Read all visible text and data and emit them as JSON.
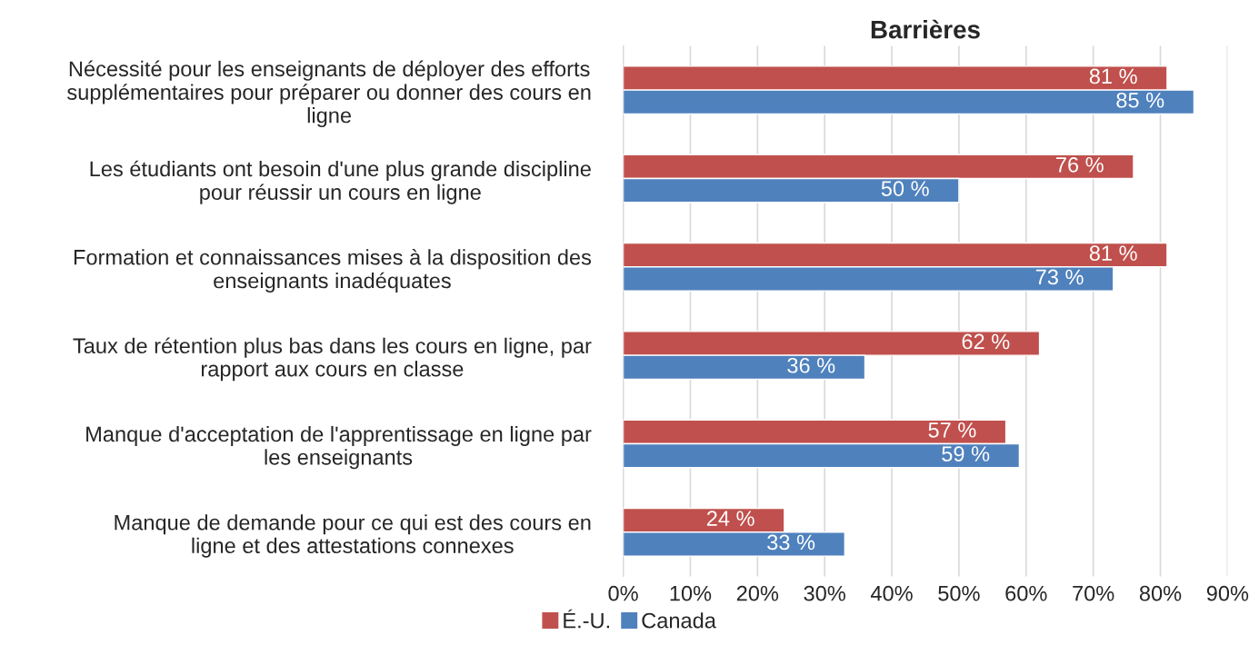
{
  "chart_data": {
    "type": "bar",
    "orientation": "horizontal",
    "title": "Barrières",
    "categories": [
      "Nécessité pour les enseignants de déployer des efforts\nsupplémentaires pour préparer ou donner des cours en\nligne",
      "Les étudiants ont besoin d'une plus grande discipline\npour réussir un cours en ligne",
      "Formation et connaissances mises à la disposition des\nenseignants inadéquates",
      "Taux de rétention plus bas dans les cours en ligne, par\nrapport aux cours en classe",
      "Manque d'acceptation de l'apprentissage en ligne par\nles enseignants",
      "Manque de demande pour ce qui est des cours en\nligne et des attestations connexes"
    ],
    "series": [
      {
        "name": "É.-U.",
        "color": "#c0504d",
        "values": [
          81,
          76,
          81,
          62,
          57,
          24
        ],
        "value_labels": [
          "81 %",
          "76 %",
          "81 %",
          "62 %",
          "57 %",
          "24 %"
        ]
      },
      {
        "name": "Canada",
        "color": "#4f81bd",
        "values": [
          85,
          50,
          73,
          36,
          59,
          33
        ],
        "value_labels": [
          "85 %",
          "50 %",
          "73 %",
          "36 %",
          "59 %",
          "33 %"
        ]
      }
    ],
    "xlim": [
      0,
      90
    ],
    "xticks": [
      {
        "value": 0,
        "label": "0%"
      },
      {
        "value": 10,
        "label": "10%"
      },
      {
        "value": 20,
        "label": "20%"
      },
      {
        "value": 30,
        "label": "30%"
      },
      {
        "value": 40,
        "label": "40%"
      },
      {
        "value": 50,
        "label": "50%"
      },
      {
        "value": 60,
        "label": "60%"
      },
      {
        "value": 70,
        "label": "70%"
      },
      {
        "value": 80,
        "label": "80%"
      },
      {
        "value": 90,
        "label": "90%"
      }
    ],
    "grid": "x",
    "legend": "bottom"
  }
}
